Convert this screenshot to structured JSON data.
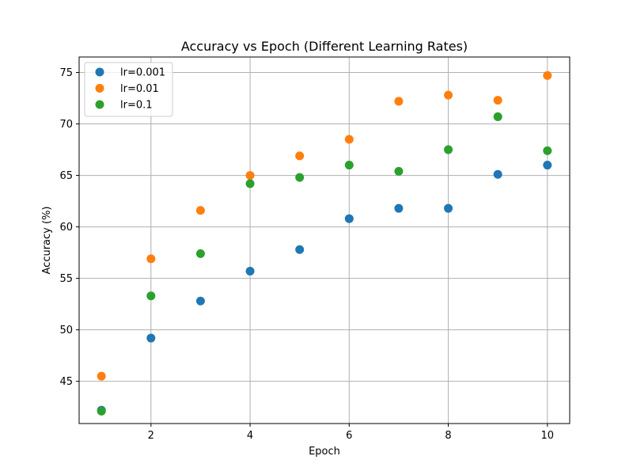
{
  "chart_data": {
    "type": "scatter",
    "title": "Accuracy vs Epoch (Different Learning Rates)",
    "xlabel": "Epoch",
    "ylabel": "Accuracy (%)",
    "xlim": [
      0.55,
      10.45
    ],
    "ylim": [
      40.9,
      76.5
    ],
    "xticks": [
      2,
      4,
      6,
      8,
      10
    ],
    "yticks": [
      45,
      50,
      55,
      60,
      65,
      70,
      75
    ],
    "grid": true,
    "legend_position": "upper-left",
    "x": [
      1,
      2,
      3,
      4,
      5,
      6,
      7,
      8,
      9,
      10
    ],
    "series": [
      {
        "name": "lr=0.001",
        "color": "#1f77b4",
        "values": [
          42.2,
          49.2,
          52.8,
          55.7,
          57.8,
          60.8,
          61.8,
          61.8,
          65.1,
          66.0
        ]
      },
      {
        "name": "lr=0.01",
        "color": "#ff7f0e",
        "values": [
          45.5,
          56.9,
          61.6,
          65.0,
          66.9,
          68.5,
          72.2,
          72.8,
          72.3,
          74.7
        ]
      },
      {
        "name": "lr=0.1",
        "color": "#2ca02c",
        "values": [
          42.1,
          53.3,
          57.4,
          64.2,
          64.8,
          66.0,
          65.4,
          67.5,
          70.7,
          67.4
        ]
      }
    ]
  }
}
